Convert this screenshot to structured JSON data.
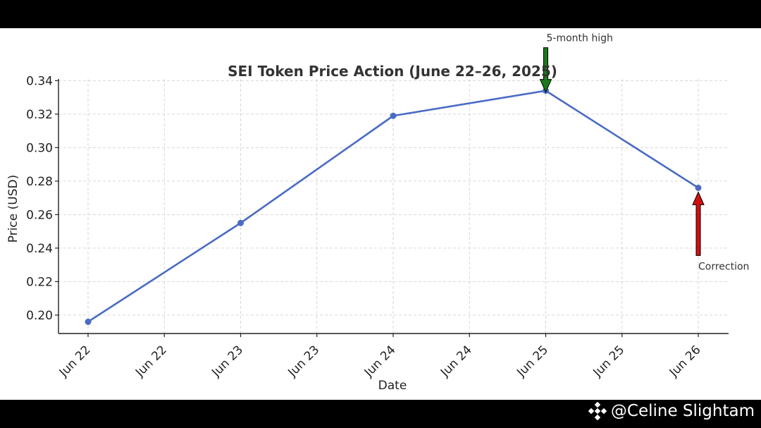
{
  "watermark": {
    "text": "@Celine Slightam",
    "icon": "binance-diamond-logo-icon"
  },
  "colors": {
    "line": "#4a6bc4",
    "grid": "#cccccc",
    "axis": "#222222",
    "arrow_up_to_peak": "#1a7a1a",
    "arrow_correction": "#d01010",
    "frame_bars": "#000000"
  },
  "chart_data": {
    "type": "line",
    "title": "SEI Token Price Action (June 22–26, 2025)",
    "xlabel": "Date",
    "ylabel": "Price (USD)",
    "x_tick_labels": [
      "Jun 22",
      "Jun 22",
      "Jun 23",
      "Jun 23",
      "Jun 24",
      "Jun 24",
      "Jun 25",
      "Jun 25",
      "Jun 26"
    ],
    "x": [
      "Jun 22",
      "Jun 23",
      "Jun 24",
      "Jun 25",
      "Jun 26"
    ],
    "series": [
      {
        "values": [
          0.196,
          0.255,
          0.319,
          0.334,
          0.276
        ]
      }
    ],
    "ylim": [
      0.189,
      0.341
    ],
    "y_ticks": [
      0.2,
      0.22,
      0.24,
      0.26,
      0.28,
      0.3,
      0.32,
      0.34
    ],
    "y_tick_labels": [
      "0.20",
      "0.22",
      "0.24",
      "0.26",
      "0.28",
      "0.30",
      "0.32",
      "0.34"
    ],
    "grid": true,
    "annotations": [
      {
        "text": "5-month high",
        "x": "Jun 25",
        "y": 0.334,
        "arrow": "down"
      },
      {
        "text": "Correction",
        "x": "Jun 26",
        "y": 0.276,
        "arrow": "up"
      }
    ]
  }
}
